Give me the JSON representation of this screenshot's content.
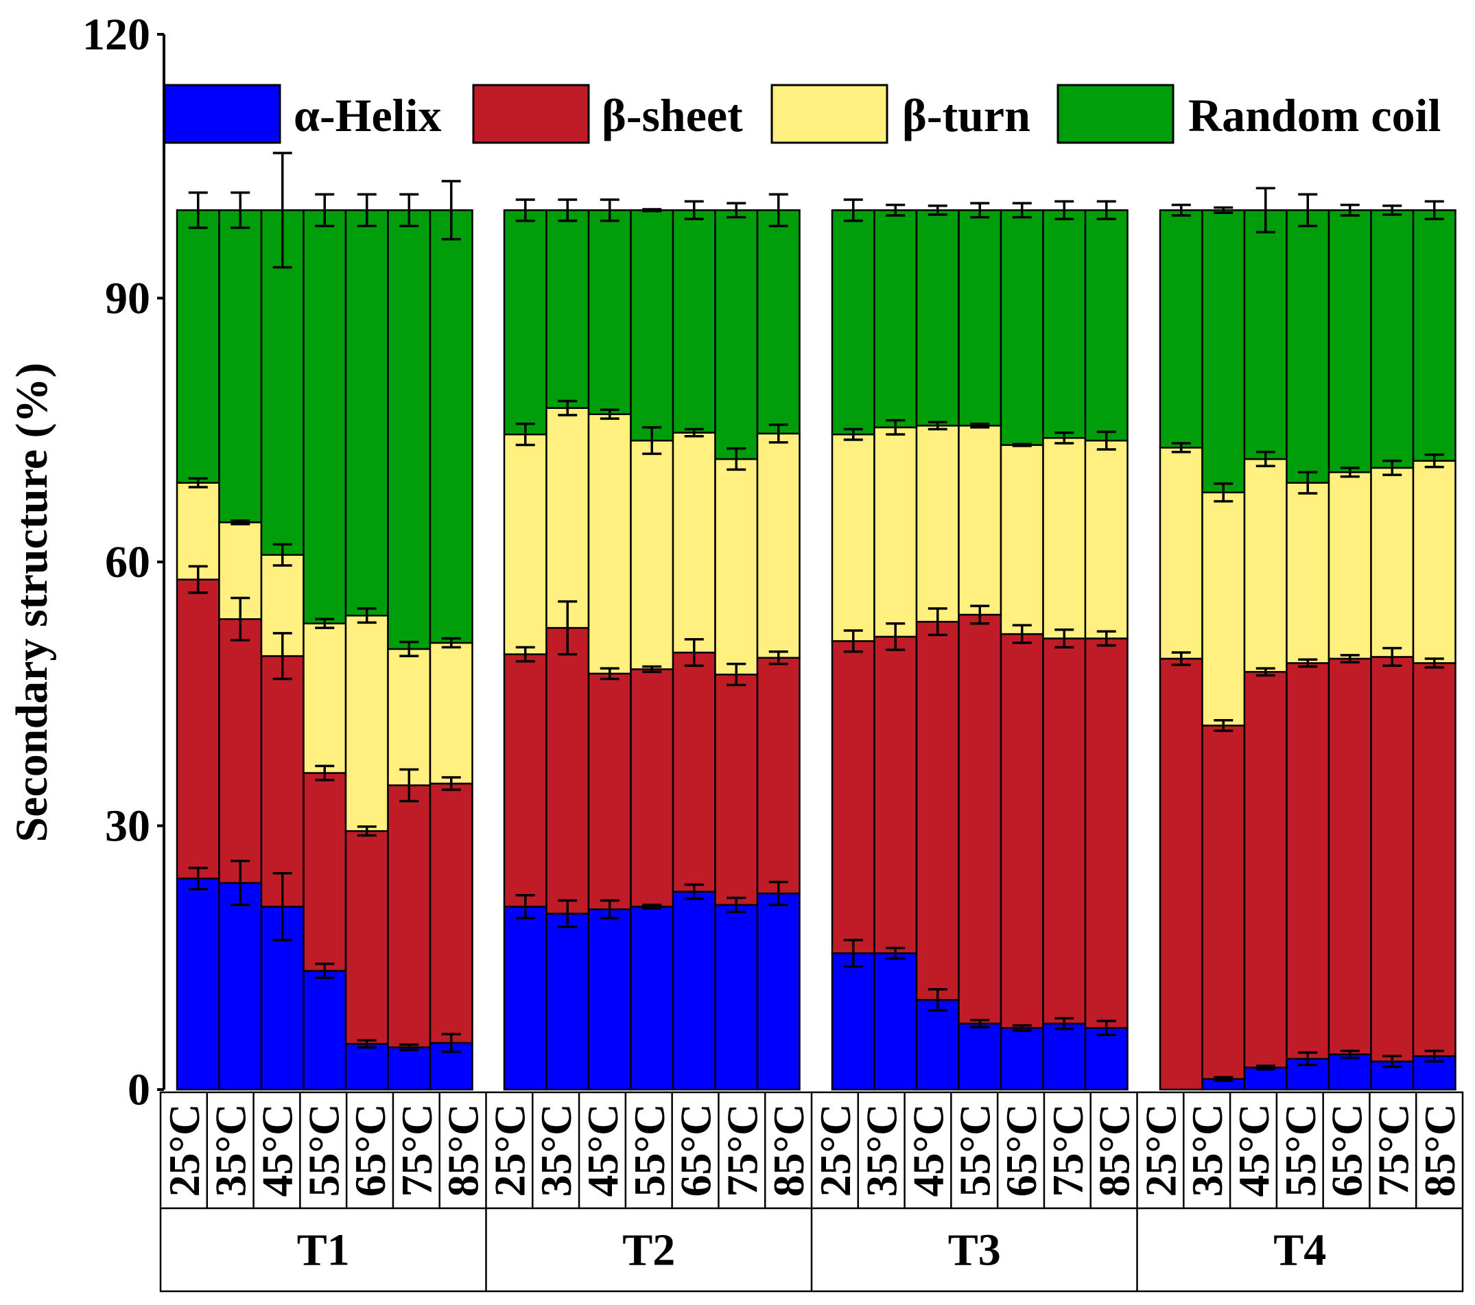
{
  "chart_data": {
    "type": "bar",
    "stacked": true,
    "ylabel": "Secondary structure (%)",
    "xlabel": "",
    "ylim": [
      0,
      120
    ],
    "yticks": [
      "0",
      "30",
      "60",
      "90",
      "120"
    ],
    "legend": {
      "placement": "top",
      "entries": [
        "α-Helix",
        "β-sheet",
        "β-turn",
        "Random coil"
      ]
    },
    "colors": {
      "α-Helix": "#0000ff",
      "β-sheet": "#c01c28",
      "β-turn": "#fff080",
      "Random coil": "#009e0a"
    },
    "groups": [
      "T1",
      "T2",
      "T3",
      "T4"
    ],
    "categories": [
      "25°C",
      "35°C",
      "45°C",
      "55°C",
      "65°C",
      "75°C",
      "85°C"
    ],
    "series": [
      {
        "name": "α-Helix",
        "values": [
          [
            24.0,
            23.5,
            20.8,
            13.5,
            5.2,
            4.8,
            5.3
          ],
          [
            20.8,
            20.0,
            20.5,
            20.8,
            22.5,
            21.0,
            22.3
          ],
          [
            15.5,
            15.5,
            10.2,
            7.5,
            7.0,
            7.5,
            7.0
          ],
          [
            0.0,
            1.2,
            2.5,
            3.5,
            4.0,
            3.2,
            3.8
          ]
        ],
        "errors": [
          [
            1.2,
            2.5,
            3.8,
            0.8,
            0.4,
            0.3,
            1.0
          ],
          [
            1.3,
            1.5,
            1.0,
            0.2,
            0.8,
            0.8,
            1.3
          ],
          [
            1.5,
            0.6,
            1.2,
            0.4,
            0.3,
            0.6,
            0.8
          ],
          [
            0.0,
            0.2,
            0.2,
            0.7,
            0.4,
            0.6,
            0.6
          ]
        ]
      },
      {
        "name": "β-sheet",
        "values": [
          [
            34.0,
            30.0,
            28.5,
            22.5,
            24.2,
            29.8,
            29.5
          ],
          [
            28.7,
            32.5,
            26.8,
            27.0,
            27.2,
            26.2,
            26.8
          ],
          [
            35.5,
            36.0,
            43.0,
            46.5,
            44.8,
            43.8,
            44.3
          ],
          [
            49.0,
            40.2,
            45.0,
            45.0,
            45.0,
            46.0,
            44.7
          ]
        ],
        "errors": [
          [
            1.5,
            2.4,
            2.6,
            0.8,
            0.5,
            1.8,
            0.7
          ],
          [
            0.8,
            3.0,
            0.6,
            0.3,
            1.5,
            1.2,
            0.7
          ],
          [
            1.2,
            1.5,
            1.5,
            1.0,
            1.0,
            1.0,
            0.8
          ],
          [
            0.7,
            0.6,
            0.4,
            0.4,
            0.4,
            1.0,
            0.5
          ]
        ]
      },
      {
        "name": "β-turn",
        "values": [
          [
            11.0,
            11.0,
            11.5,
            17.0,
            24.5,
            15.5,
            16.0
          ],
          [
            25.0,
            25.0,
            29.5,
            26.0,
            25.0,
            24.5,
            25.5
          ],
          [
            23.5,
            23.8,
            22.3,
            21.5,
            21.5,
            22.8,
            22.5
          ],
          [
            24.0,
            26.5,
            24.2,
            20.5,
            21.2,
            21.5,
            23.0
          ]
        ],
        "errors": [
          [
            0.5,
            0.2,
            1.2,
            0.5,
            0.8,
            0.8,
            0.5
          ],
          [
            1.2,
            0.8,
            0.5,
            1.5,
            0.4,
            1.2,
            1.0
          ],
          [
            0.6,
            0.8,
            0.4,
            0.2,
            0.1,
            0.6,
            1.0
          ],
          [
            0.5,
            1.0,
            0.8,
            1.2,
            0.5,
            0.8,
            0.7
          ]
        ]
      },
      {
        "name": "Random coil",
        "values": [
          [
            31.0,
            35.5,
            39.2,
            47.0,
            46.1,
            49.9,
            49.2
          ],
          [
            25.5,
            22.5,
            23.2,
            26.2,
            25.3,
            28.3,
            25.4
          ],
          [
            25.5,
            24.7,
            24.5,
            24.5,
            26.7,
            25.9,
            26.2
          ],
          [
            27.0,
            32.1,
            28.3,
            31.0,
            29.8,
            29.3,
            28.5
          ]
        ],
        "errors": [
          [
            2.0,
            2.0,
            6.5,
            1.8,
            1.8,
            1.8,
            3.3
          ],
          [
            1.2,
            1.2,
            1.2,
            0.1,
            1.0,
            0.8,
            1.8
          ],
          [
            1.2,
            0.6,
            0.5,
            0.8,
            0.8,
            1.0,
            1.0
          ],
          [
            0.6,
            0.3,
            2.5,
            1.8,
            0.6,
            0.5,
            1.0
          ]
        ]
      }
    ]
  }
}
